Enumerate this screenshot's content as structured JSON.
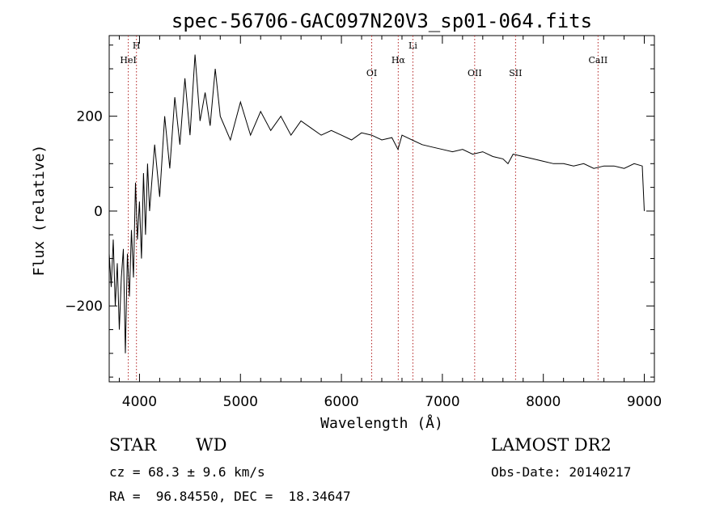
{
  "chart_data": {
    "type": "line",
    "title": "spec-56706-GAC097N20V3_sp01-064.fits",
    "xlabel": "Wavelength (Å)",
    "ylabel": "Flux (relative)",
    "xlim": [
      3700,
      9100
    ],
    "ylim": [
      -360,
      370
    ],
    "xticks": [
      4000,
      5000,
      6000,
      7000,
      8000,
      9000
    ],
    "yticks": [
      -200,
      0,
      200
    ],
    "xtick_labels": [
      "4000",
      "5000",
      "6000",
      "7000",
      "8000",
      "9000"
    ],
    "ytick_labels": [
      "−200",
      "0",
      "200"
    ],
    "line_color": "#000000",
    "marker_color": "#b22222",
    "series": [
      {
        "x": [
          3700,
          3720,
          3740,
          3760,
          3780,
          3800,
          3820,
          3840,
          3860,
          3880,
          3900,
          3920,
          3940,
          3960,
          3980,
          4000,
          4020,
          4040,
          4060,
          4080,
          4100,
          4150,
          4200,
          4250,
          4300,
          4350,
          4400,
          4450,
          4500,
          4550,
          4600,
          4650,
          4700,
          4750,
          4800,
          4900,
          5000,
          5100,
          5200,
          5300,
          5400,
          5500,
          5600,
          5700,
          5800,
          5900,
          6000,
          6100,
          6200,
          6300,
          6400,
          6500,
          6560,
          6600,
          6700,
          6800,
          6900,
          7000,
          7100,
          7200,
          7300,
          7400,
          7500,
          7600,
          7650,
          7700,
          7800,
          7900,
          8000,
          8100,
          8200,
          8300,
          8400,
          8500,
          8600,
          8700,
          8800,
          8900,
          8980,
          9000
        ],
        "y": [
          -90,
          -160,
          -60,
          -200,
          -110,
          -250,
          -140,
          -80,
          -300,
          -90,
          -180,
          -40,
          -140,
          60,
          -60,
          20,
          -100,
          80,
          -50,
          100,
          0,
          140,
          30,
          200,
          90,
          240,
          140,
          280,
          160,
          330,
          190,
          250,
          180,
          300,
          200,
          150,
          230,
          160,
          210,
          170,
          200,
          160,
          190,
          175,
          160,
          170,
          160,
          150,
          165,
          160,
          150,
          155,
          130,
          160,
          150,
          140,
          135,
          130,
          125,
          130,
          120,
          125,
          115,
          110,
          100,
          120,
          115,
          110,
          105,
          100,
          100,
          95,
          100,
          90,
          95,
          95,
          90,
          100,
          95,
          0
        ]
      }
    ],
    "line_markers": [
      {
        "label": "HeI",
        "x": 3889,
        "row": 2
      },
      {
        "label": "H",
        "x": 3970,
        "row": 1
      },
      {
        "label": "OI",
        "x": 6300,
        "row": 3
      },
      {
        "label": "Hα",
        "x": 6563,
        "row": 2
      },
      {
        "label": "Li",
        "x": 6708,
        "row": 1
      },
      {
        "label": "OII",
        "x": 7320,
        "row": 3
      },
      {
        "label": "SII",
        "x": 7725,
        "row": 3
      },
      {
        "label": "CaII",
        "x": 8542,
        "row": 2
      }
    ]
  },
  "info": {
    "class_label": "STAR",
    "subclass_label": "WD",
    "survey": "LAMOST DR2",
    "cz": "cz = 68.3 ± 9.6 km/s",
    "obs_date": "Obs-Date: 20140217",
    "coords": "RA =  96.84550, DEC =  18.34647"
  }
}
